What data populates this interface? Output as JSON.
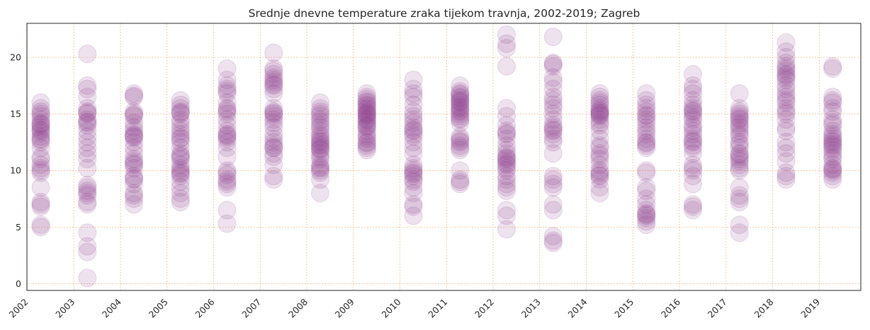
{
  "chart_data": {
    "type": "scatter",
    "title": "Srednje dnevne temperature zraka tijekom travnja, 2002-2019; Zagreb",
    "xlabel": "",
    "ylabel": "",
    "ylim": [
      -0.6,
      23.0
    ],
    "y_ticks": [
      "0",
      "5",
      "10",
      "15",
      "20"
    ],
    "x_ticks": [
      "2002",
      "2003",
      "2004",
      "2005",
      "2006",
      "2007",
      "2008",
      "2009",
      "2010",
      "2011",
      "2012",
      "2013",
      "2014",
      "2015",
      "2016",
      "2017",
      "2018",
      "2019"
    ],
    "grid": true,
    "marker_color": "#8b3a8b",
    "marker_alpha": 0.15,
    "series": [
      {
        "x": "2002",
        "values": [
          16.0,
          15.5,
          15.0,
          14.5,
          14.2,
          14.0,
          13.8,
          13.5,
          13.0,
          12.8,
          12.5,
          12.0,
          11.2,
          11.0,
          10.5,
          10.2,
          10.0,
          8.5,
          7.2,
          7.0,
          6.8,
          5.2,
          5.0,
          12.7,
          13.6,
          14.8,
          15.2,
          14.1,
          9.8,
          13.3
        ]
      },
      {
        "x": "2003",
        "values": [
          20.3,
          17.5,
          17.2,
          16.5,
          15.5,
          15.2,
          15.0,
          14.5,
          14.2,
          14.0,
          13.5,
          13.0,
          12.5,
          12.0,
          11.5,
          11.0,
          10.2,
          8.7,
          8.5,
          8.2,
          8.0,
          7.8,
          7.2,
          7.0,
          4.5,
          3.3,
          2.8,
          0.5,
          14.3,
          15.1
        ]
      },
      {
        "x": "2004",
        "values": [
          16.8,
          16.5,
          15.2,
          15.0,
          14.8,
          14.2,
          13.8,
          13.5,
          13.2,
          13.0,
          12.5,
          12.0,
          11.5,
          11.0,
          10.8,
          10.5,
          10.2,
          9.5,
          9.2,
          8.8,
          8.0,
          7.8,
          7.5,
          7.0,
          13.1,
          14.9,
          16.6,
          10.6,
          9.3,
          12.9
        ]
      },
      {
        "x": "2005",
        "values": [
          16.2,
          15.8,
          15.5,
          15.2,
          15.0,
          14.5,
          14.2,
          13.8,
          13.5,
          13.2,
          12.8,
          12.5,
          12.0,
          11.5,
          11.2,
          11.0,
          10.5,
          10.2,
          10.0,
          9.8,
          9.5,
          9.0,
          8.5,
          8.0,
          7.5,
          7.2,
          15.1,
          12.9,
          9.7,
          11.3
        ]
      },
      {
        "x": "2006",
        "values": [
          19.0,
          18.0,
          17.5,
          17.2,
          16.8,
          16.0,
          15.5,
          15.2,
          15.0,
          14.5,
          14.0,
          13.5,
          13.2,
          13.0,
          12.5,
          12.0,
          11.2,
          10.0,
          9.8,
          9.2,
          9.0,
          8.8,
          8.5,
          6.5,
          5.3,
          17.0,
          15.4,
          12.8,
          9.6,
          13.1
        ]
      },
      {
        "x": "2007",
        "values": [
          20.4,
          19.0,
          18.8,
          18.5,
          18.2,
          18.0,
          17.8,
          17.5,
          17.2,
          16.8,
          15.5,
          15.2,
          15.0,
          14.8,
          14.5,
          14.2,
          13.8,
          13.2,
          12.8,
          12.5,
          12.2,
          12.0,
          11.5,
          11.2,
          10.5,
          9.5,
          9.2,
          17.6,
          15.1,
          12.0
        ]
      },
      {
        "x": "2008",
        "values": [
          16.0,
          15.5,
          15.2,
          14.8,
          14.5,
          14.0,
          13.8,
          13.5,
          13.2,
          12.8,
          12.5,
          12.2,
          12.0,
          11.8,
          11.5,
          11.2,
          11.0,
          10.5,
          10.2,
          10.0,
          9.8,
          9.2,
          8.0,
          12.3,
          14.3,
          12.6,
          10.3,
          13.0,
          11.9,
          15.0
        ]
      },
      {
        "x": "2009",
        "values": [
          16.8,
          16.5,
          16.0,
          15.8,
          15.5,
          15.2,
          15.0,
          14.8,
          14.5,
          14.2,
          14.0,
          13.8,
          13.5,
          13.2,
          13.0,
          12.8,
          12.5,
          12.2,
          12.0,
          11.8,
          15.1,
          14.6,
          16.3,
          13.9,
          15.4,
          14.9,
          12.4,
          16.1,
          14.4,
          15.7
        ]
      },
      {
        "x": "2010",
        "values": [
          18.0,
          17.2,
          16.8,
          16.5,
          15.8,
          15.2,
          14.8,
          14.5,
          14.2,
          13.8,
          13.5,
          13.2,
          13.0,
          12.5,
          12.0,
          11.5,
          10.5,
          10.2,
          10.0,
          9.8,
          9.5,
          9.2,
          9.0,
          8.5,
          8.0,
          7.0,
          6.8,
          6.0,
          9.7,
          13.6
        ]
      },
      {
        "x": "2011",
        "values": [
          17.5,
          17.0,
          16.8,
          16.5,
          16.2,
          16.0,
          15.8,
          15.5,
          15.2,
          15.0,
          14.8,
          14.5,
          14.2,
          13.0,
          12.8,
          12.5,
          12.2,
          12.0,
          11.8,
          10.0,
          9.2,
          8.8,
          16.1,
          15.6,
          16.4,
          12.6,
          9.0,
          15.3,
          14.6,
          16.7
        ]
      },
      {
        "x": "2012",
        "values": [
          22.0,
          21.2,
          20.8,
          19.2,
          15.5,
          14.8,
          14.0,
          13.5,
          13.2,
          12.8,
          12.2,
          11.8,
          11.5,
          11.2,
          11.0,
          10.8,
          10.5,
          10.2,
          10.0,
          9.5,
          9.2,
          8.8,
          8.5,
          8.2,
          6.5,
          6.0,
          4.8,
          11.1,
          10.6,
          13.3
        ]
      },
      {
        "x": "2013",
        "values": [
          21.8,
          19.5,
          19.2,
          18.2,
          17.8,
          17.2,
          16.5,
          16.2,
          15.8,
          15.5,
          15.0,
          14.5,
          14.0,
          13.8,
          13.5,
          13.2,
          12.8,
          12.5,
          11.5,
          9.5,
          9.2,
          8.8,
          8.5,
          7.0,
          6.5,
          4.2,
          3.8,
          3.6,
          19.4,
          13.6
        ]
      },
      {
        "x": "2014",
        "values": [
          16.8,
          16.5,
          16.2,
          16.0,
          15.8,
          15.5,
          15.2,
          15.0,
          14.8,
          14.5,
          14.2,
          14.0,
          13.5,
          12.8,
          12.2,
          12.0,
          11.5,
          11.0,
          10.5,
          10.0,
          9.8,
          9.5,
          9.2,
          8.5,
          8.0,
          15.3,
          14.9,
          9.6,
          15.1,
          11.3
        ]
      },
      {
        "x": "2015",
        "values": [
          16.8,
          16.2,
          15.8,
          15.5,
          15.2,
          14.8,
          14.5,
          14.2,
          13.8,
          13.5,
          13.2,
          12.8,
          12.5,
          12.2,
          12.0,
          10.0,
          9.8,
          8.5,
          8.2,
          7.5,
          7.0,
          6.5,
          6.2,
          6.0,
          5.8,
          5.5,
          5.2,
          12.4,
          14.9,
          6.1
        ]
      },
      {
        "x": "2016",
        "values": [
          18.5,
          17.5,
          17.2,
          16.8,
          16.2,
          15.8,
          15.5,
          15.2,
          15.0,
          14.5,
          14.0,
          13.8,
          13.5,
          13.2,
          12.8,
          12.5,
          12.2,
          12.0,
          11.5,
          10.5,
          10.2,
          10.0,
          9.5,
          8.8,
          7.0,
          6.8,
          6.5,
          15.3,
          14.7,
          12.6
        ]
      },
      {
        "x": "2017",
        "values": [
          16.8,
          15.5,
          15.2,
          15.0,
          14.8,
          14.5,
          14.2,
          14.0,
          13.8,
          13.5,
          13.2,
          13.0,
          12.5,
          12.0,
          11.5,
          11.2,
          11.0,
          10.8,
          10.5,
          10.2,
          10.0,
          8.5,
          7.8,
          7.5,
          7.2,
          5.2,
          4.5,
          14.6,
          12.3,
          11.4
        ]
      },
      {
        "x": "2018",
        "values": [
          21.3,
          20.5,
          20.0,
          19.5,
          19.2,
          19.0,
          18.8,
          18.5,
          18.2,
          18.0,
          17.5,
          17.2,
          16.8,
          16.5,
          16.2,
          15.5,
          15.2,
          15.0,
          14.5,
          13.8,
          13.5,
          12.5,
          12.0,
          11.5,
          10.8,
          9.8,
          9.5,
          9.2,
          18.4,
          16.0
        ]
      },
      {
        "x": "2019",
        "values": [
          19.2,
          19.0,
          16.5,
          16.2,
          16.0,
          15.5,
          15.2,
          14.5,
          14.2,
          14.0,
          13.5,
          13.2,
          13.0,
          12.8,
          12.5,
          12.2,
          12.0,
          11.8,
          11.5,
          11.2,
          11.0,
          10.5,
          10.2,
          10.0,
          9.8,
          9.5,
          9.2,
          12.6,
          12.3,
          10.1
        ]
      }
    ]
  }
}
